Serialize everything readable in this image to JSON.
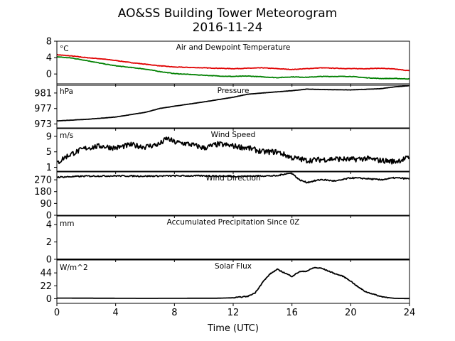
{
  "figure": {
    "title_line1": "AO&SS Building Tower Meteorogram",
    "title_line2": "2016-11-24",
    "xlabel": "Time (UTC)",
    "xticks": [
      0,
      4,
      8,
      12,
      16,
      20,
      24
    ]
  },
  "chart_data": [
    {
      "type": "line",
      "title": "Air and Dewpoint Temperature",
      "unit": "°C",
      "ylim": [
        -2.4,
        8
      ],
      "yticks": [
        0,
        4,
        8
      ],
      "xlim": [
        0,
        24
      ],
      "series": [
        {
          "color": "#e00000",
          "x": [
            0,
            1,
            2,
            3,
            4,
            5,
            6,
            7,
            8,
            9,
            10,
            11,
            12,
            13,
            14,
            15,
            16,
            17,
            18,
            19,
            20,
            21,
            22,
            23,
            24
          ],
          "values": [
            4.7,
            4.4,
            4.0,
            3.7,
            3.3,
            2.8,
            2.4,
            2.0,
            1.7,
            1.6,
            1.5,
            1.4,
            1.3,
            1.4,
            1.5,
            1.3,
            1.1,
            1.3,
            1.5,
            1.4,
            1.3,
            1.3,
            1.4,
            1.2,
            0.8
          ]
        },
        {
          "color": "#008000",
          "x": [
            0,
            1,
            2,
            3,
            4,
            5,
            6,
            7,
            8,
            9,
            10,
            11,
            12,
            13,
            14,
            15,
            16,
            17,
            18,
            19,
            20,
            21,
            22,
            23,
            24
          ],
          "values": [
            4.2,
            3.9,
            3.3,
            2.6,
            2.0,
            1.6,
            1.2,
            0.6,
            0.1,
            -0.1,
            -0.3,
            -0.5,
            -0.6,
            -0.5,
            -0.7,
            -0.9,
            -0.7,
            -0.8,
            -0.6,
            -0.6,
            -0.6,
            -0.9,
            -1.1,
            -1.1,
            -1.2
          ]
        }
      ]
    },
    {
      "type": "line",
      "title": "Pressure",
      "unit": "hPa",
      "ylim": [
        972,
        983
      ],
      "yticks": [
        973,
        977,
        981
      ],
      "xlim": [
        0,
        24
      ],
      "series": [
        {
          "color": "#000000",
          "x": [
            0,
            2,
            4,
            6,
            7,
            8,
            10,
            12,
            13,
            14,
            16,
            17,
            18,
            20,
            22,
            23,
            24
          ],
          "values": [
            973.8,
            974.2,
            974.8,
            976.0,
            977.0,
            977.6,
            978.7,
            979.9,
            980.7,
            981.0,
            981.6,
            982.0,
            981.9,
            981.8,
            982.1,
            982.6,
            982.9
          ]
        }
      ]
    },
    {
      "type": "line",
      "title": "Wind Speed",
      "unit": "m/s",
      "ylim": [
        0,
        11
      ],
      "yticks": [
        1,
        5,
        9
      ],
      "xlim": [
        0,
        24
      ],
      "series": [
        {
          "color": "#000000",
          "x": [
            0,
            0.5,
            1,
            2,
            3,
            4,
            5,
            6,
            7,
            7.5,
            8,
            9,
            10,
            11,
            12,
            13,
            14,
            15,
            16,
            17,
            18,
            19,
            20,
            21,
            22,
            23,
            24
          ],
          "values": [
            2.0,
            3.5,
            4.5,
            6.0,
            6.5,
            6.0,
            6.8,
            6.3,
            7.0,
            8.5,
            7.5,
            7.0,
            6.0,
            7.0,
            6.5,
            6.0,
            5.0,
            5.0,
            3.5,
            2.8,
            3.0,
            3.2,
            3.0,
            3.3,
            2.8,
            2.5,
            3.5
          ]
        }
      ]
    },
    {
      "type": "line",
      "title": "Wind Direction",
      "unit": "",
      "ylim": [
        0,
        330
      ],
      "yticks": [
        0,
        90,
        180,
        270
      ],
      "xlim": [
        0,
        24
      ],
      "series": [
        {
          "color": "#000000",
          "x": [
            0,
            2,
            4,
            6,
            8,
            10,
            12,
            14,
            15,
            15.5,
            16,
            16.5,
            17,
            18,
            19,
            20,
            21,
            22,
            23,
            24
          ],
          "values": [
            290,
            298,
            300,
            298,
            300,
            300,
            296,
            300,
            300,
            315,
            320,
            270,
            250,
            272,
            260,
            285,
            280,
            270,
            285,
            278
          ]
        }
      ]
    },
    {
      "type": "line",
      "title": "Accumulated Precipitation Since 0Z",
      "unit": "mm",
      "ylim": [
        0,
        5
      ],
      "yticks": [
        0,
        2,
        4
      ],
      "xlim": [
        0,
        24
      ],
      "series": [
        {
          "color": "#000000",
          "x": [
            0,
            24
          ],
          "values": [
            0,
            0
          ]
        }
      ]
    },
    {
      "type": "line",
      "title": "Solar Flux",
      "unit": "W/m^2",
      "ylim": [
        -8,
        66
      ],
      "yticks": [
        0,
        22,
        44
      ],
      "xlim": [
        0,
        24
      ],
      "series": [
        {
          "color": "#000000",
          "x": [
            0,
            6,
            11,
            12,
            13,
            13.5,
            14,
            14.5,
            15,
            15.5,
            16,
            16.5,
            17,
            17.5,
            18,
            18.5,
            19,
            19.5,
            20,
            20.5,
            21,
            22,
            22.5,
            23,
            24
          ],
          "values": [
            1,
            0.5,
            0.8,
            1.5,
            4,
            10,
            28,
            42,
            50,
            44,
            38,
            46,
            47,
            53,
            52,
            47,
            42,
            38,
            30,
            20,
            12,
            4,
            2,
            0.5,
            0.2
          ]
        }
      ]
    }
  ]
}
